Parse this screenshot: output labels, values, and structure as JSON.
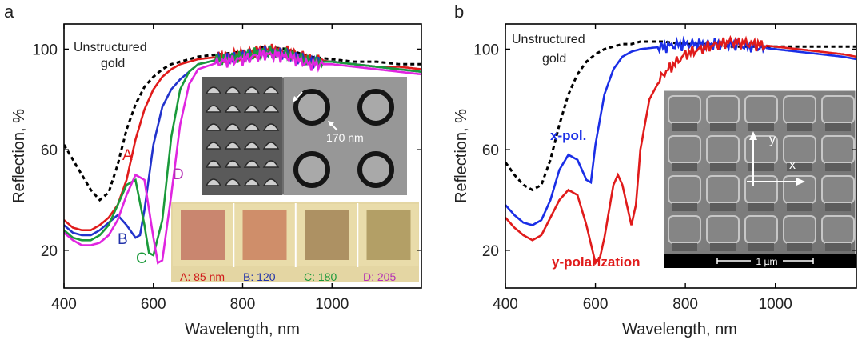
{
  "chart_data": [
    {
      "panel_label": "a",
      "type": "line",
      "xlabel": "Wavelength, nm",
      "ylabel": "Reflection, %",
      "xlim": [
        400,
        1200
      ],
      "ylim": [
        5,
        110
      ],
      "xticks": [
        400,
        600,
        800,
        1000
      ],
      "yticks": [
        20,
        60,
        100
      ],
      "grid": false,
      "series": [
        {
          "name": "Unstructured gold",
          "color": "#000000",
          "dash": true,
          "x": [
            400,
            420,
            440,
            460,
            480,
            500,
            520,
            540,
            560,
            580,
            600,
            620,
            640,
            660,
            680,
            700,
            750,
            800,
            850,
            900,
            950,
            1000,
            1050,
            1100,
            1150,
            1200
          ],
          "y": [
            62,
            56,
            50,
            44,
            40,
            43,
            54,
            68,
            78,
            85,
            89,
            92,
            94,
            95,
            96,
            97,
            98,
            99,
            101,
            100,
            97,
            96,
            95,
            95,
            94,
            94
          ]
        },
        {
          "name": "A",
          "color": "#e01b1b",
          "dash": false,
          "x": [
            400,
            420,
            440,
            460,
            480,
            500,
            520,
            540,
            550,
            560,
            580,
            600,
            620,
            640,
            660,
            680,
            700,
            750,
            800,
            850,
            900,
            950,
            1000,
            1050,
            1100,
            1150,
            1200
          ],
          "y": [
            32,
            29,
            28,
            28,
            30,
            33,
            38,
            48,
            56,
            64,
            76,
            84,
            89,
            92,
            94,
            95,
            96,
            97,
            98,
            100,
            99,
            96,
            95,
            94,
            93,
            93,
            92
          ]
        },
        {
          "name": "B",
          "color": "#2233cc",
          "dash": false,
          "x": [
            400,
            420,
            440,
            460,
            480,
            500,
            520,
            540,
            560,
            570,
            580,
            600,
            620,
            640,
            660,
            680,
            700,
            750,
            800,
            850,
            900,
            950,
            1000,
            1050,
            1100,
            1150,
            1200
          ],
          "y": [
            30,
            27,
            26,
            26,
            28,
            31,
            34,
            30,
            25,
            26,
            36,
            62,
            77,
            84,
            88,
            91,
            94,
            96,
            97,
            99,
            98,
            95,
            95,
            94,
            93,
            92,
            91
          ]
        },
        {
          "name": "C",
          "color": "#1a9a3a",
          "dash": false,
          "x": [
            400,
            420,
            440,
            460,
            480,
            500,
            520,
            540,
            560,
            580,
            590,
            600,
            620,
            640,
            660,
            680,
            700,
            750,
            800,
            850,
            900,
            950,
            1000,
            1050,
            1100,
            1150,
            1200
          ],
          "y": [
            28,
            25,
            24,
            24,
            26,
            30,
            38,
            46,
            48,
            30,
            19,
            18,
            32,
            65,
            84,
            91,
            94,
            96,
            97,
            99,
            98,
            95,
            95,
            94,
            93,
            92,
            91
          ]
        },
        {
          "name": "D",
          "color": "#e025e0",
          "dash": false,
          "x": [
            400,
            420,
            440,
            460,
            480,
            500,
            520,
            540,
            560,
            580,
            600,
            610,
            620,
            640,
            660,
            680,
            700,
            750,
            800,
            850,
            900,
            950,
            1000,
            1050,
            1100,
            1150,
            1200
          ],
          "y": [
            27,
            24,
            22,
            22,
            23,
            26,
            32,
            42,
            50,
            48,
            25,
            15,
            16,
            42,
            70,
            86,
            92,
            95,
            96,
            98,
            97,
            94,
            94,
            93,
            92,
            91,
            90
          ]
        }
      ],
      "annotations": {
        "unstructured_line1": "Unstructured",
        "unstructured_line2": "gold",
        "label_A": "A",
        "label_B": "B",
        "label_C": "C",
        "label_D": "D",
        "scale_label": "170 nm"
      },
      "swatches": [
        {
          "label": "A: 85 nm",
          "color": "#c9866f",
          "label_color": "#d01b1b"
        },
        {
          "label": "B: 120",
          "color": "#cf8e6a",
          "label_color": "#2233aa"
        },
        {
          "label": "C: 180",
          "color": "#ad9163",
          "label_color": "#1a9a3a"
        },
        {
          "label": "D: 205",
          "color": "#b39f66",
          "label_color": "#b530b5"
        }
      ]
    },
    {
      "panel_label": "b",
      "type": "line",
      "xlabel": "Wavelength, nm",
      "ylabel": "Reflection, %",
      "xlim": [
        400,
        1180
      ],
      "ylim": [
        5,
        110
      ],
      "xticks": [
        400,
        600,
        800,
        1000
      ],
      "yticks": [
        20,
        60,
        100
      ],
      "grid": false,
      "series": [
        {
          "name": "Unstructured gold",
          "color": "#000000",
          "dash": true,
          "x": [
            400,
            420,
            440,
            460,
            480,
            500,
            520,
            540,
            560,
            580,
            600,
            620,
            640,
            660,
            680,
            700,
            750,
            800,
            850,
            900,
            950,
            1000,
            1050,
            1100,
            1150,
            1180
          ],
          "y": [
            55,
            50,
            46,
            44,
            46,
            56,
            70,
            82,
            90,
            95,
            98,
            100,
            101,
            102,
            102,
            103,
            103,
            102,
            102,
            101,
            101,
            101,
            101,
            101,
            101,
            101
          ]
        },
        {
          "name": "x-pol.",
          "color": "#1a2ee6",
          "dash": false,
          "x": [
            400,
            420,
            440,
            460,
            480,
            500,
            520,
            540,
            560,
            580,
            590,
            600,
            620,
            640,
            660,
            680,
            700,
            750,
            800,
            850,
            900,
            950,
            1000,
            1050,
            1100,
            1150,
            1180
          ],
          "y": [
            38,
            34,
            31,
            30,
            32,
            40,
            52,
            58,
            56,
            48,
            47,
            62,
            82,
            92,
            97,
            99,
            100,
            101,
            102,
            102,
            102,
            101,
            100,
            99,
            98,
            97,
            96
          ]
        },
        {
          "name": "y-polarization",
          "color": "#e01b1b",
          "dash": false,
          "x": [
            400,
            420,
            440,
            460,
            480,
            500,
            520,
            540,
            560,
            580,
            600,
            610,
            620,
            640,
            650,
            660,
            680,
            690,
            700,
            720,
            750,
            800,
            850,
            900,
            950,
            1000,
            1050,
            1100,
            1150,
            1180
          ],
          "y": [
            33,
            29,
            26,
            24,
            26,
            33,
            40,
            44,
            42,
            30,
            15,
            17,
            25,
            46,
            50,
            46,
            30,
            38,
            60,
            80,
            90,
            98,
            101,
            103,
            102,
            101,
            100,
            99,
            98,
            97
          ]
        }
      ],
      "annotations": {
        "unstructured_line1": "Unstructured",
        "unstructured_line2": "gold",
        "label_xpol": "x-pol.",
        "label_ypol": "y-polarization",
        "axis_y": "y",
        "axis_x": "x",
        "scale_label": "1 µm"
      }
    }
  ]
}
